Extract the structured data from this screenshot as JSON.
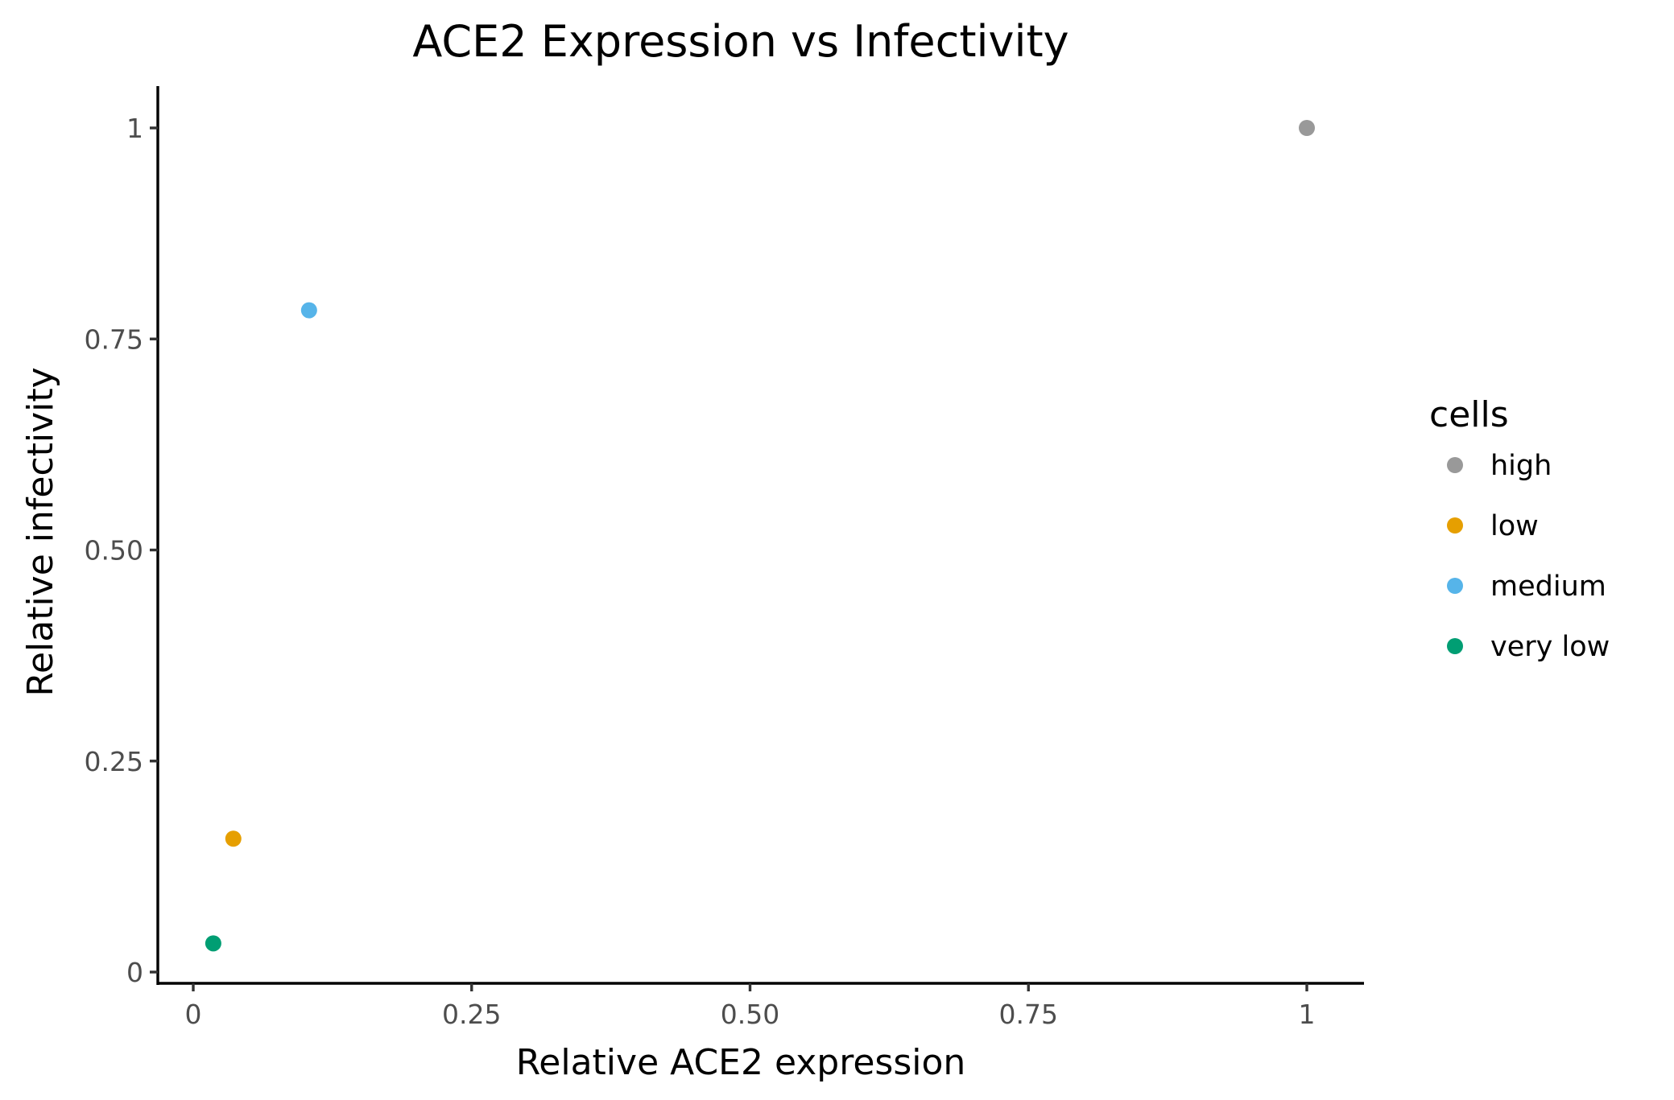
{
  "chart_data": {
    "type": "scatter",
    "title": "ACE2 Expression vs Infectivity",
    "xlabel": "Relative ACE2 expression",
    "ylabel": "Relative infectivity",
    "xlim": [
      -0.03,
      1.05
    ],
    "ylim": [
      -0.012,
      1.05
    ],
    "x_ticks": [
      0,
      0.25,
      0.5,
      0.75,
      1
    ],
    "x_tick_labels": [
      "0",
      "0.25",
      "0.50",
      "0.75",
      "1"
    ],
    "y_ticks": [
      0,
      0.25,
      0.5,
      0.75,
      1
    ],
    "y_tick_labels": [
      "0",
      "0.25",
      "0.50",
      "0.75",
      "1"
    ],
    "grid": false,
    "legend": {
      "title": "cells",
      "placement": "right",
      "entries": [
        {
          "label": "high",
          "color": "#999999"
        },
        {
          "label": "low",
          "color": "#E69F00"
        },
        {
          "label": "medium",
          "color": "#56B4E9"
        },
        {
          "label": "very low",
          "color": "#009E73"
        }
      ]
    },
    "points": [
      {
        "group": "high",
        "x": 1.0,
        "y": 1.0,
        "color": "#999999"
      },
      {
        "group": "low",
        "x": 0.036,
        "y": 0.158,
        "color": "#E69F00"
      },
      {
        "group": "medium",
        "x": 0.104,
        "y": 0.784,
        "color": "#56B4E9"
      },
      {
        "group": "very low",
        "x": 0.018,
        "y": 0.034,
        "color": "#009E73"
      }
    ]
  }
}
